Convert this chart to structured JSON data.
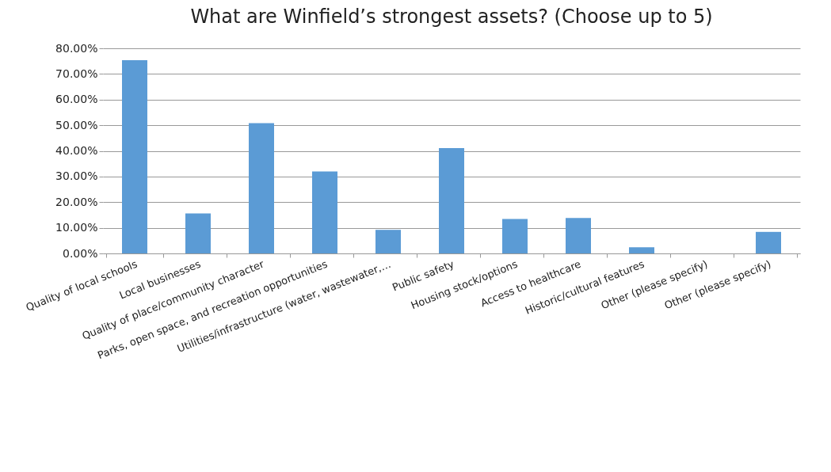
{
  "chart_data": {
    "type": "bar",
    "title": "What are Winfield’s strongest assets? (Choose up to 5)",
    "categories": [
      "Quality of local schools",
      "Local businesses",
      "Quality of place/community character",
      "Parks, open space, and recreation opportunities",
      "Utilities/infrastructure (water, wastewater,…",
      "Public safety",
      "Housing stock/options",
      "Access to healthcare",
      "Historic/cultural features",
      "Other (please specify)",
      "Other (please specify)"
    ],
    "values": [
      75.4,
      15.6,
      50.8,
      32.0,
      9.2,
      41.1,
      13.4,
      13.8,
      2.4,
      0,
      8.4
    ],
    "color": "#5b9bd5",
    "ylim": [
      0,
      80
    ],
    "yticks": [
      {
        "value": 0,
        "label": "0.00%"
      },
      {
        "value": 10,
        "label": "10.00%"
      },
      {
        "value": 20,
        "label": "20.00%"
      },
      {
        "value": 30,
        "label": "30.00%"
      },
      {
        "value": 40,
        "label": "40.00%"
      },
      {
        "value": 50,
        "label": "50.00%"
      },
      {
        "value": 60,
        "label": "60.00%"
      },
      {
        "value": 70,
        "label": "70.00%"
      },
      {
        "value": 80,
        "label": "80.00%"
      }
    ],
    "grid": "y"
  }
}
